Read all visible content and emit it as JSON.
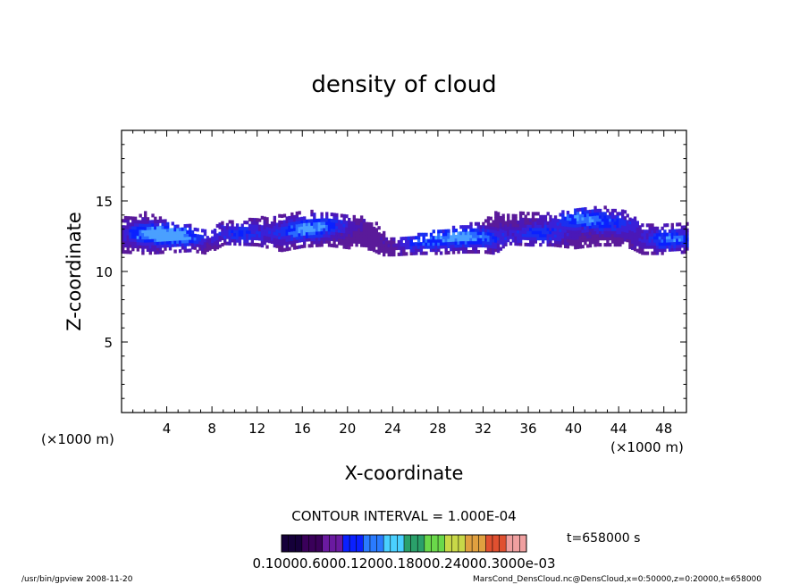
{
  "chart_data": {
    "type": "heatmap",
    "title": "density of cloud",
    "xlabel": "X-coordinate",
    "ylabel": "Z-coordinate",
    "x_unit_left": "(×1000 m)",
    "x_unit_right": "(×1000 m)",
    "xlim": [
      0,
      50
    ],
    "ylim": [
      0,
      20
    ],
    "x_ticks": [
      4,
      8,
      12,
      16,
      20,
      24,
      28,
      32,
      36,
      40,
      44,
      48
    ],
    "y_ticks": [
      5,
      10,
      15
    ],
    "contour_interval": "CONTOUR INTERVAL = 1.000E-04",
    "time_label": "t=658000 s",
    "colorbar_labels": "0.10000.6000.12000.18000.24000.3000e-03",
    "colormap": [
      "#15003a",
      "#3a005a",
      "#6a1aa0",
      "#0a20ff",
      "#2a7bff",
      "#4ad0ff",
      "#2aa06a",
      "#6ad84a",
      "#c8d848",
      "#e0a040",
      "#e05030",
      "#f0a0a0"
    ],
    "layer_profile": {
      "x": [
        0,
        2,
        4,
        6,
        7.5,
        9,
        12,
        13,
        14,
        16,
        18,
        20,
        22,
        23,
        24,
        26,
        28,
        30,
        32,
        33,
        34,
        36,
        38,
        40,
        42,
        44,
        45,
        46,
        48,
        50
      ],
      "z_bottom": [
        11.3,
        11.2,
        11.3,
        11.4,
        11.2,
        11.9,
        11.8,
        11.6,
        11.4,
        11.7,
        11.8,
        11.6,
        11.5,
        11.1,
        11.1,
        11.2,
        11.2,
        11.3,
        11.3,
        11.2,
        11.9,
        11.8,
        11.8,
        11.6,
        11.8,
        11.8,
        11.6,
        11.2,
        11.2,
        11.3
      ],
      "z_top": [
        13.7,
        14.1,
        13.5,
        13.3,
        12.7,
        13.5,
        13.7,
        13.8,
        14.0,
        14.2,
        14.1,
        13.9,
        13.8,
        12.9,
        12.4,
        12.5,
        12.9,
        13.1,
        13.6,
        14.1,
        14.0,
        14.1,
        14.0,
        14.3,
        14.6,
        14.2,
        14.1,
        13.4,
        13.2,
        13.4
      ]
    },
    "cores": [
      {
        "x": 2.5,
        "z": 12.6,
        "intensity": 0.85
      },
      {
        "x": 5,
        "z": 12.4,
        "intensity": 0.75
      },
      {
        "x": 10.5,
        "z": 12.6,
        "intensity": 0.5
      },
      {
        "x": 15.5,
        "z": 12.7,
        "intensity": 0.55
      },
      {
        "x": 17.5,
        "z": 13.2,
        "intensity": 0.6
      },
      {
        "x": 26.5,
        "z": 12.0,
        "intensity": 0.5
      },
      {
        "x": 29.5,
        "z": 12.4,
        "intensity": 0.65
      },
      {
        "x": 32,
        "z": 12.3,
        "intensity": 0.45
      },
      {
        "x": 37,
        "z": 12.6,
        "intensity": 0.5
      },
      {
        "x": 40.5,
        "z": 13.7,
        "intensity": 0.7
      },
      {
        "x": 43.5,
        "z": 13.3,
        "intensity": 0.45
      },
      {
        "x": 48.5,
        "z": 12.2,
        "intensity": 0.7
      }
    ]
  },
  "footer": {
    "left": "/usr/bin/gpview  2008-11-20",
    "right": "MarsCond_DensCloud.nc@DensCloud,x=0:50000,z=0:20000,t=658000"
  }
}
